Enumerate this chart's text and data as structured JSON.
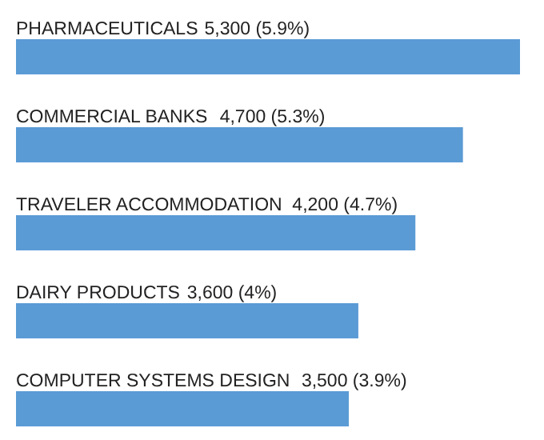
{
  "chart_data": {
    "type": "bar",
    "orientation": "horizontal",
    "categories": [
      "PHARMACEUTICALS",
      "COMMERCIAL  BANKS",
      "TRAVELER ACCOMMODATION",
      "DAIRY PRODUCTS",
      "COMPUTER SYSTEMS  DESIGN"
    ],
    "values": [
      5300,
      4700,
      4200,
      3600,
      3500
    ],
    "value_labels": [
      "5,300 (5.9%)",
      "4,700 (5.3%)",
      "4,200 (4.7%)",
      "3,600 (4%)",
      "3,500 (3.9%)"
    ],
    "color": "#5b9bd5",
    "tick_labels": false
  }
}
